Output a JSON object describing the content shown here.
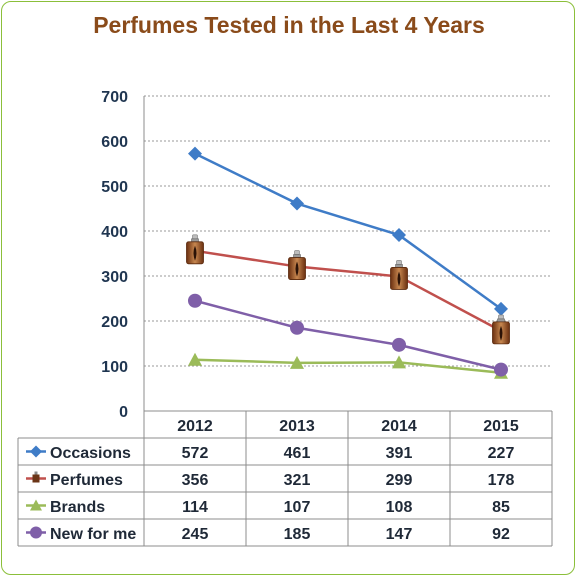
{
  "chart_data": {
    "type": "line",
    "title": "Perfumes Tested in the Last 4 Years",
    "categories": [
      "2012",
      "2013",
      "2014",
      "2015"
    ],
    "y_ticks": [
      "0",
      "100",
      "200",
      "300",
      "400",
      "500",
      "600",
      "700"
    ],
    "ylim": [
      0,
      700
    ],
    "grid": true,
    "legend": "data-table",
    "series": [
      {
        "name": "Occasions",
        "values": [
          572,
          461,
          391,
          227
        ],
        "color": "#3f7cc7",
        "marker": "diamond"
      },
      {
        "name": "Perfumes",
        "values": [
          356,
          321,
          299,
          178
        ],
        "color": "#c0504d",
        "marker": "perfume-bottle-icon"
      },
      {
        "name": "Brands",
        "values": [
          114,
          107,
          108,
          85
        ],
        "color": "#9bbb59",
        "marker": "triangle"
      },
      {
        "name": "New for me",
        "values": [
          245,
          185,
          147,
          92
        ],
        "color": "#7f5fa8",
        "marker": "circle"
      }
    ]
  }
}
